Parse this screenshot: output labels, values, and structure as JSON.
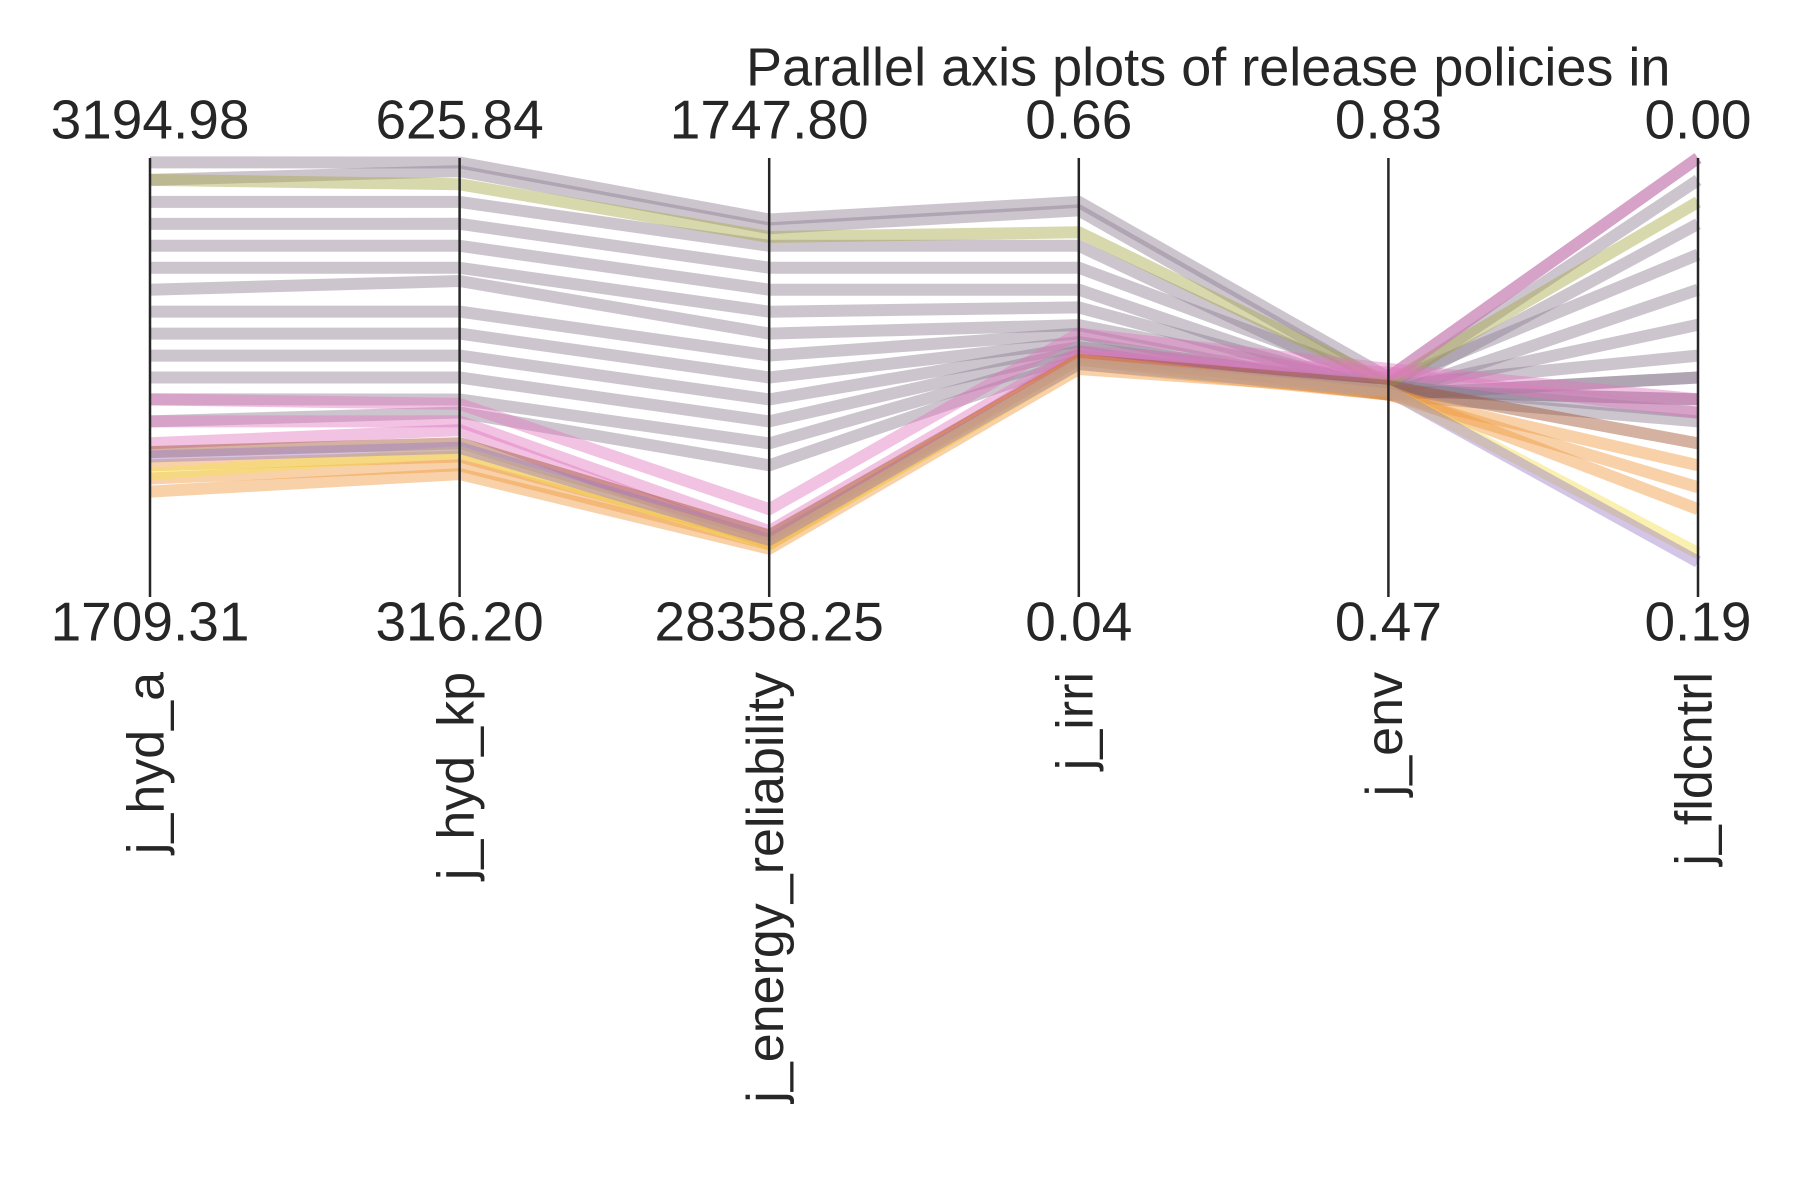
{
  "chart_data": {
    "type": "parallel",
    "title": "Parallel axis plots of release policies in",
    "axes": [
      {
        "label": "j_hyd_a",
        "ylim": [
          1709.31,
          3194.98
        ],
        "yticks": [
          1709.31,
          3194.98
        ]
      },
      {
        "label": "j_hyd_kp",
        "ylim": [
          316.2,
          625.84
        ],
        "yticks": [
          {
            "value": 316.2,
            "label": "316.20"
          },
          625.84
        ]
      },
      {
        "label": "j_energy_reliability",
        "ylim": [
          28358.25,
          1747.8
        ],
        "yticks": [
          28358.25,
          {
            "value": 1747.8,
            "label": "1747.80"
          }
        ]
      },
      {
        "label": "j_irri",
        "ylim": [
          0.04,
          0.66
        ],
        "yticks": [
          0.04,
          0.66
        ]
      },
      {
        "label": "j_env",
        "ylim": [
          0.47,
          0.83
        ],
        "yticks": [
          0.47,
          0.83
        ]
      },
      {
        "label": "j_fldcntrl",
        "ylim": [
          0.19,
          0
        ],
        "yticks": [
          0.19,
          {
            "value": 0,
            "label": "0.00"
          }
        ]
      }
    ],
    "series": [
      {
        "color": "#8f7f93",
        "values": [
          3180.1,
          622.7,
          5473.3,
          0.598,
          0.65,
          0
        ]
      },
      {
        "color": "#8f7f93",
        "values": [
          3120.7,
          616.6,
          6005.5,
          0.586,
          0.643,
          0.0095
        ]
      },
      {
        "color": "#8f7f93",
        "values": [
          3046.4,
          594.9,
          7069.9,
          0.536,
          0.639,
          0.0285
        ]
      },
      {
        "color": "#8f7f93",
        "values": [
          2972.1,
          579.4,
          8400.4,
          0.505,
          0.646,
          0.0418
        ]
      },
      {
        "color": "#8f7f93",
        "values": [
          2897.9,
          563.9,
          9730.9,
          0.474,
          0.636,
          0.057
        ]
      },
      {
        "color": "#8f7f93",
        "values": [
          2823.6,
          548.4,
          11061.5,
          0.449,
          0.639,
          0.0722
        ]
      },
      {
        "color": "#8f7f93",
        "values": [
          2749.3,
          539.1,
          12392,
          0.424,
          0.643,
          0.0855
        ]
      },
      {
        "color": "#8f7f93",
        "values": [
          2675,
          517.5,
          13722.5,
          0.412,
          0.636,
          0.095
        ]
      },
      {
        "color": "#8f7f93",
        "values": [
          2600.7,
          502,
          15053,
          0.4,
          0.639,
          0.1045
        ]
      },
      {
        "color": "#8f7f93",
        "values": [
          2526.4,
          486.5,
          16383.5,
          0.393,
          0.643,
          0.1102
        ]
      },
      {
        "color": "#8f7f93",
        "values": [
          2452.2,
          471,
          17714,
          0.387,
          0.636,
          0.114
        ]
      },
      {
        "color": "#8f7f93",
        "values": [
          2377.9,
          455.5,
          19044.6,
          0.381,
          0.639,
          0.1045
        ]
      },
      {
        "color": "#8f7f93",
        "values": [
          2303.6,
          446.3,
          20375.1,
          0.375,
          0.636,
          0.095
        ]
      },
      {
        "color": "#a9a94a",
        "values": [
          3120.7,
          607.3,
          6537.6,
          0.555,
          0.646,
          0.019
        ]
      },
      {
        "color": "#e377c2",
        "values": [
          2377.9,
          452.4,
          23036.2,
          0.412,
          0.657,
          0.1045
        ]
      },
      {
        "color": "#e377c2",
        "values": [
          2303.6,
          440.1,
          24366.7,
          0.387,
          0.654,
          0.1102
        ]
      },
      {
        "color": "#e377c2",
        "values": [
          2229.3,
          433.9,
          25165,
          0.381,
          0.65,
          0
        ]
      },
      {
        "color": "#a0522d",
        "values": [
          2199.6,
          424.6,
          24632.7,
          0.375,
          0.643,
          0.1235
        ]
      },
      {
        "color": "#f09a3e",
        "values": [
          2155,
          415.3,
          24898.9,
          0.375,
          0.636,
          0.133
        ]
      },
      {
        "color": "#f09a3e",
        "values": [
          2110.4,
          409.1,
          25165,
          0.369,
          0.636,
          0.1425
        ]
      },
      {
        "color": "#f09a3e",
        "values": [
          2065.9,
          402.9,
          25431.1,
          0.362,
          0.639,
          0.152
        ]
      },
      {
        "color": "#f5e050",
        "values": [
          2125.3,
          418.4,
          25165,
          0.369,
          0.639,
          0.171
        ]
      },
      {
        "color": "#9b7fc7",
        "values": [
          2184.7,
          421.5,
          24898.9,
          0.369,
          0.639,
          0.1748
        ]
      }
    ]
  }
}
